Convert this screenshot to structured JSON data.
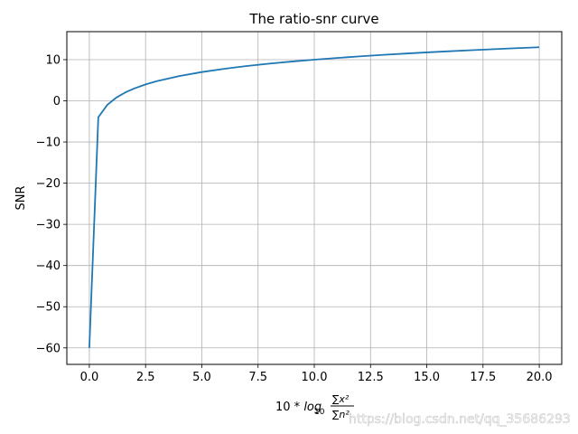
{
  "chart_data": {
    "type": "line",
    "title": "The ratio-snr curve",
    "ylabel": "SNR",
    "xlabel_parts": {
      "prefix": "10 * ",
      "func": "log",
      "sub": "10",
      "num": "∑x²",
      "den": "∑n²"
    },
    "xlim": [
      -1.0,
      21.0
    ],
    "ylim": [
      -64.0,
      16.8
    ],
    "grid": true,
    "x_ticks": [
      0.0,
      2.5,
      5.0,
      7.5,
      10.0,
      12.5,
      15.0,
      17.5,
      20.0
    ],
    "x_tick_labels": [
      "0.0",
      "2.5",
      "5.0",
      "7.5",
      "10.0",
      "12.5",
      "15.0",
      "17.5",
      "20.0"
    ],
    "y_ticks": [
      -60,
      -50,
      -40,
      -30,
      -20,
      -10,
      0,
      10
    ],
    "y_tick_labels": [
      "−60",
      "−50",
      "−40",
      "−30",
      "−20",
      "−10",
      "0",
      "10"
    ],
    "series": [
      {
        "color": "#1f77b4",
        "x": [
          0.0,
          0.4,
          0.8,
          1.2,
          1.6,
          2.0,
          2.5,
          3.0,
          4.0,
          5.0,
          6.0,
          7.0,
          8.0,
          9.0,
          10.0,
          11.0,
          12.0,
          13.0,
          14.0,
          15.0,
          16.0,
          17.0,
          18.0,
          19.0,
          20.0
        ],
        "y": [
          -60.0,
          -3.98,
          -0.97,
          0.79,
          2.04,
          3.01,
          3.98,
          4.77,
          6.02,
          6.99,
          7.78,
          8.45,
          9.03,
          9.54,
          10.0,
          10.41,
          10.79,
          11.14,
          11.46,
          11.76,
          12.04,
          12.3,
          12.55,
          12.79,
          13.01
        ]
      }
    ]
  },
  "watermark": "https://blog.csdn.net/qq_35686293"
}
